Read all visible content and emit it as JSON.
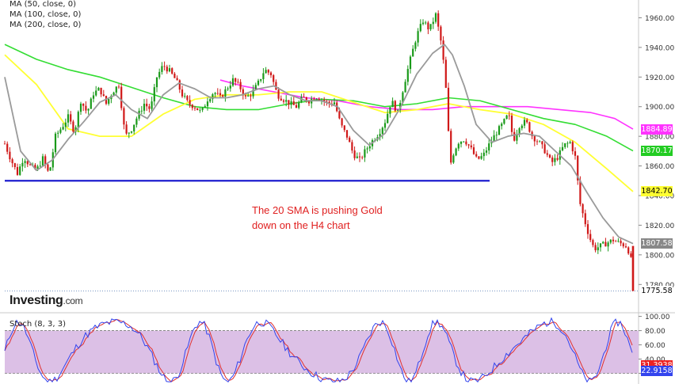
{
  "legend": [
    "MA (50, close, 0)",
    "MA (100, close, 0)",
    "MA (200, close, 0)"
  ],
  "annotation": [
    "The 20 SMA is pushing Gold",
    "down on the H4 chart"
  ],
  "logo": {
    "brand": "Investing",
    "domain": ".com"
  },
  "stoch_label": "Stoch (8, 3, 3)",
  "price_badges": [
    {
      "value": "1884.89",
      "bg": "#ff33ff",
      "fg": "#ffffff"
    },
    {
      "value": "1870.17",
      "bg": "#22cc22",
      "fg": "#ffffff"
    },
    {
      "value": "1842.70",
      "bg": "#ffff33",
      "fg": "#000000"
    },
    {
      "value": "1807.58",
      "bg": "#888888",
      "fg": "#ffffff"
    },
    {
      "value": "1775.58",
      "bg": "#ffffff",
      "fg": "#000000"
    }
  ],
  "stoch_badges": [
    {
      "value": "31.3938",
      "bg": "#ee2222",
      "fg": "#ffffff"
    },
    {
      "value": "22.9158",
      "bg": "#3344ee",
      "fg": "#ffffff"
    }
  ],
  "chart_data": {
    "type": "candlestick",
    "price_axis": {
      "ticks": [
        1960,
        1940,
        1920,
        1900,
        1880,
        1860,
        1840,
        1820,
        1800,
        1780
      ],
      "labels": [
        "1960.00",
        "1940.00",
        "1920.00",
        "1900.00",
        "1880.00",
        "1860.00",
        "1840.00",
        "1820.00",
        "1800.00",
        "1780.00"
      ],
      "range": [
        1770,
        1972
      ]
    },
    "stoch_axis": {
      "ticks": [
        100,
        80,
        60,
        40,
        20
      ],
      "labels": [
        "100.00",
        "80.00",
        "60.00",
        "40.00",
        "20.00"
      ],
      "range": [
        5,
        104
      ],
      "band": [
        20,
        80
      ]
    },
    "support_level": 1850,
    "last_price": 1775.58,
    "close_path": [
      [
        0,
        1875
      ],
      [
        8,
        1864
      ],
      [
        16,
        1855
      ],
      [
        24,
        1866
      ],
      [
        32,
        1860
      ],
      [
        40,
        1857
      ],
      [
        48,
        1865
      ],
      [
        56,
        1854
      ],
      [
        64,
        1880
      ],
      [
        72,
        1886
      ],
      [
        80,
        1893
      ],
      [
        88,
        1883
      ],
      [
        96,
        1904
      ],
      [
        104,
        1896
      ],
      [
        112,
        1909
      ],
      [
        120,
        1912
      ],
      [
        128,
        1902
      ],
      [
        136,
        1910
      ],
      [
        144,
        1915
      ],
      [
        152,
        1880
      ],
      [
        160,
        1885
      ],
      [
        168,
        1894
      ],
      [
        176,
        1902
      ],
      [
        184,
        1898
      ],
      [
        192,
        1920
      ],
      [
        200,
        1928
      ],
      [
        208,
        1924
      ],
      [
        216,
        1918
      ],
      [
        224,
        1908
      ],
      [
        232,
        1902
      ],
      [
        240,
        1900
      ],
      [
        248,
        1896
      ],
      [
        256,
        1905
      ],
      [
        264,
        1910
      ],
      [
        272,
        1906
      ],
      [
        280,
        1912
      ],
      [
        288,
        1918
      ],
      [
        296,
        1914
      ],
      [
        304,
        1906
      ],
      [
        312,
        1909
      ],
      [
        320,
        1916
      ],
      [
        328,
        1925
      ],
      [
        336,
        1922
      ],
      [
        344,
        1908
      ],
      [
        352,
        1905
      ],
      [
        360,
        1902
      ],
      [
        368,
        1900
      ],
      [
        376,
        1906
      ],
      [
        384,
        1904
      ],
      [
        392,
        1907
      ],
      [
        400,
        1905
      ],
      [
        408,
        1902
      ],
      [
        416,
        1903
      ],
      [
        424,
        1888
      ],
      [
        432,
        1880
      ],
      [
        440,
        1868
      ],
      [
        448,
        1864
      ],
      [
        456,
        1871
      ],
      [
        464,
        1877
      ],
      [
        472,
        1882
      ],
      [
        480,
        1890
      ],
      [
        488,
        1904
      ],
      [
        496,
        1896
      ],
      [
        504,
        1915
      ],
      [
        512,
        1932
      ],
      [
        520,
        1948
      ],
      [
        528,
        1958
      ],
      [
        536,
        1952
      ],
      [
        544,
        1962
      ],
      [
        552,
        1940
      ],
      [
        558,
        1905
      ],
      [
        562,
        1860
      ],
      [
        566,
        1868
      ],
      [
        572,
        1876
      ],
      [
        580,
        1878
      ],
      [
        588,
        1872
      ],
      [
        596,
        1864
      ],
      [
        604,
        1867
      ],
      [
        612,
        1875
      ],
      [
        620,
        1882
      ],
      [
        628,
        1888
      ],
      [
        636,
        1895
      ],
      [
        642,
        1877
      ],
      [
        650,
        1888
      ],
      [
        658,
        1890
      ],
      [
        666,
        1880
      ],
      [
        674,
        1876
      ],
      [
        682,
        1870
      ],
      [
        690,
        1862
      ],
      [
        698,
        1866
      ],
      [
        706,
        1874
      ],
      [
        714,
        1876
      ],
      [
        720,
        1866
      ],
      [
        726,
        1835
      ],
      [
        732,
        1823
      ],
      [
        738,
        1812
      ],
      [
        744,
        1804
      ],
      [
        752,
        1806
      ],
      [
        760,
        1808
      ],
      [
        768,
        1810
      ],
      [
        776,
        1808
      ],
      [
        784,
        1806
      ],
      [
        790,
        1800
      ],
      [
        793,
        1775.58
      ]
    ],
    "sma20": [
      [
        0,
        1920
      ],
      [
        20,
        1870
      ],
      [
        40,
        1857
      ],
      [
        60,
        1864
      ],
      [
        80,
        1878
      ],
      [
        100,
        1890
      ],
      [
        120,
        1903
      ],
      [
        140,
        1908
      ],
      [
        160,
        1898
      ],
      [
        180,
        1892
      ],
      [
        200,
        1908
      ],
      [
        220,
        1916
      ],
      [
        240,
        1912
      ],
      [
        260,
        1906
      ],
      [
        280,
        1906
      ],
      [
        300,
        1908
      ],
      [
        320,
        1912
      ],
      [
        340,
        1914
      ],
      [
        360,
        1908
      ],
      [
        380,
        1904
      ],
      [
        400,
        1904
      ],
      [
        420,
        1900
      ],
      [
        440,
        1884
      ],
      [
        460,
        1874
      ],
      [
        480,
        1882
      ],
      [
        500,
        1900
      ],
      [
        520,
        1922
      ],
      [
        540,
        1936
      ],
      [
        555,
        1942
      ],
      [
        565,
        1935
      ],
      [
        580,
        1914
      ],
      [
        595,
        1888
      ],
      [
        615,
        1876
      ],
      [
        635,
        1880
      ],
      [
        655,
        1882
      ],
      [
        675,
        1880
      ],
      [
        695,
        1870
      ],
      [
        715,
        1860
      ],
      [
        735,
        1842
      ],
      [
        755,
        1825
      ],
      [
        775,
        1812
      ],
      [
        793,
        1807.58
      ]
    ],
    "ma50": [
      [
        0,
        1935
      ],
      [
        40,
        1915
      ],
      [
        80,
        1885
      ],
      [
        120,
        1880
      ],
      [
        160,
        1880
      ],
      [
        200,
        1895
      ],
      [
        240,
        1905
      ],
      [
        280,
        1908
      ],
      [
        320,
        1908
      ],
      [
        360,
        1910
      ],
      [
        400,
        1910
      ],
      [
        440,
        1903
      ],
      [
        480,
        1896
      ],
      [
        520,
        1898
      ],
      [
        560,
        1902
      ],
      [
        600,
        1898
      ],
      [
        640,
        1895
      ],
      [
        680,
        1888
      ],
      [
        720,
        1876
      ],
      [
        760,
        1858
      ],
      [
        793,
        1842.7
      ]
    ],
    "ma100": [
      [
        0,
        1942
      ],
      [
        40,
        1932
      ],
      [
        80,
        1925
      ],
      [
        120,
        1920
      ],
      [
        160,
        1913
      ],
      [
        200,
        1906
      ],
      [
        240,
        1900
      ],
      [
        280,
        1898
      ],
      [
        320,
        1898
      ],
      [
        360,
        1902
      ],
      [
        400,
        1905
      ],
      [
        440,
        1904
      ],
      [
        480,
        1900
      ],
      [
        520,
        1902
      ],
      [
        560,
        1906
      ],
      [
        600,
        1904
      ],
      [
        640,
        1898
      ],
      [
        680,
        1892
      ],
      [
        720,
        1888
      ],
      [
        760,
        1880
      ],
      [
        793,
        1870.17
      ]
    ],
    "ma200": [
      [
        272,
        1918
      ],
      [
        300,
        1914
      ],
      [
        340,
        1910
      ],
      [
        380,
        1906
      ],
      [
        420,
        1904
      ],
      [
        460,
        1900
      ],
      [
        500,
        1898
      ],
      [
        540,
        1898
      ],
      [
        580,
        1900
      ],
      [
        620,
        1900
      ],
      [
        660,
        1900
      ],
      [
        700,
        1898
      ],
      [
        740,
        1896
      ],
      [
        770,
        1892
      ],
      [
        793,
        1884.89
      ]
    ]
  }
}
